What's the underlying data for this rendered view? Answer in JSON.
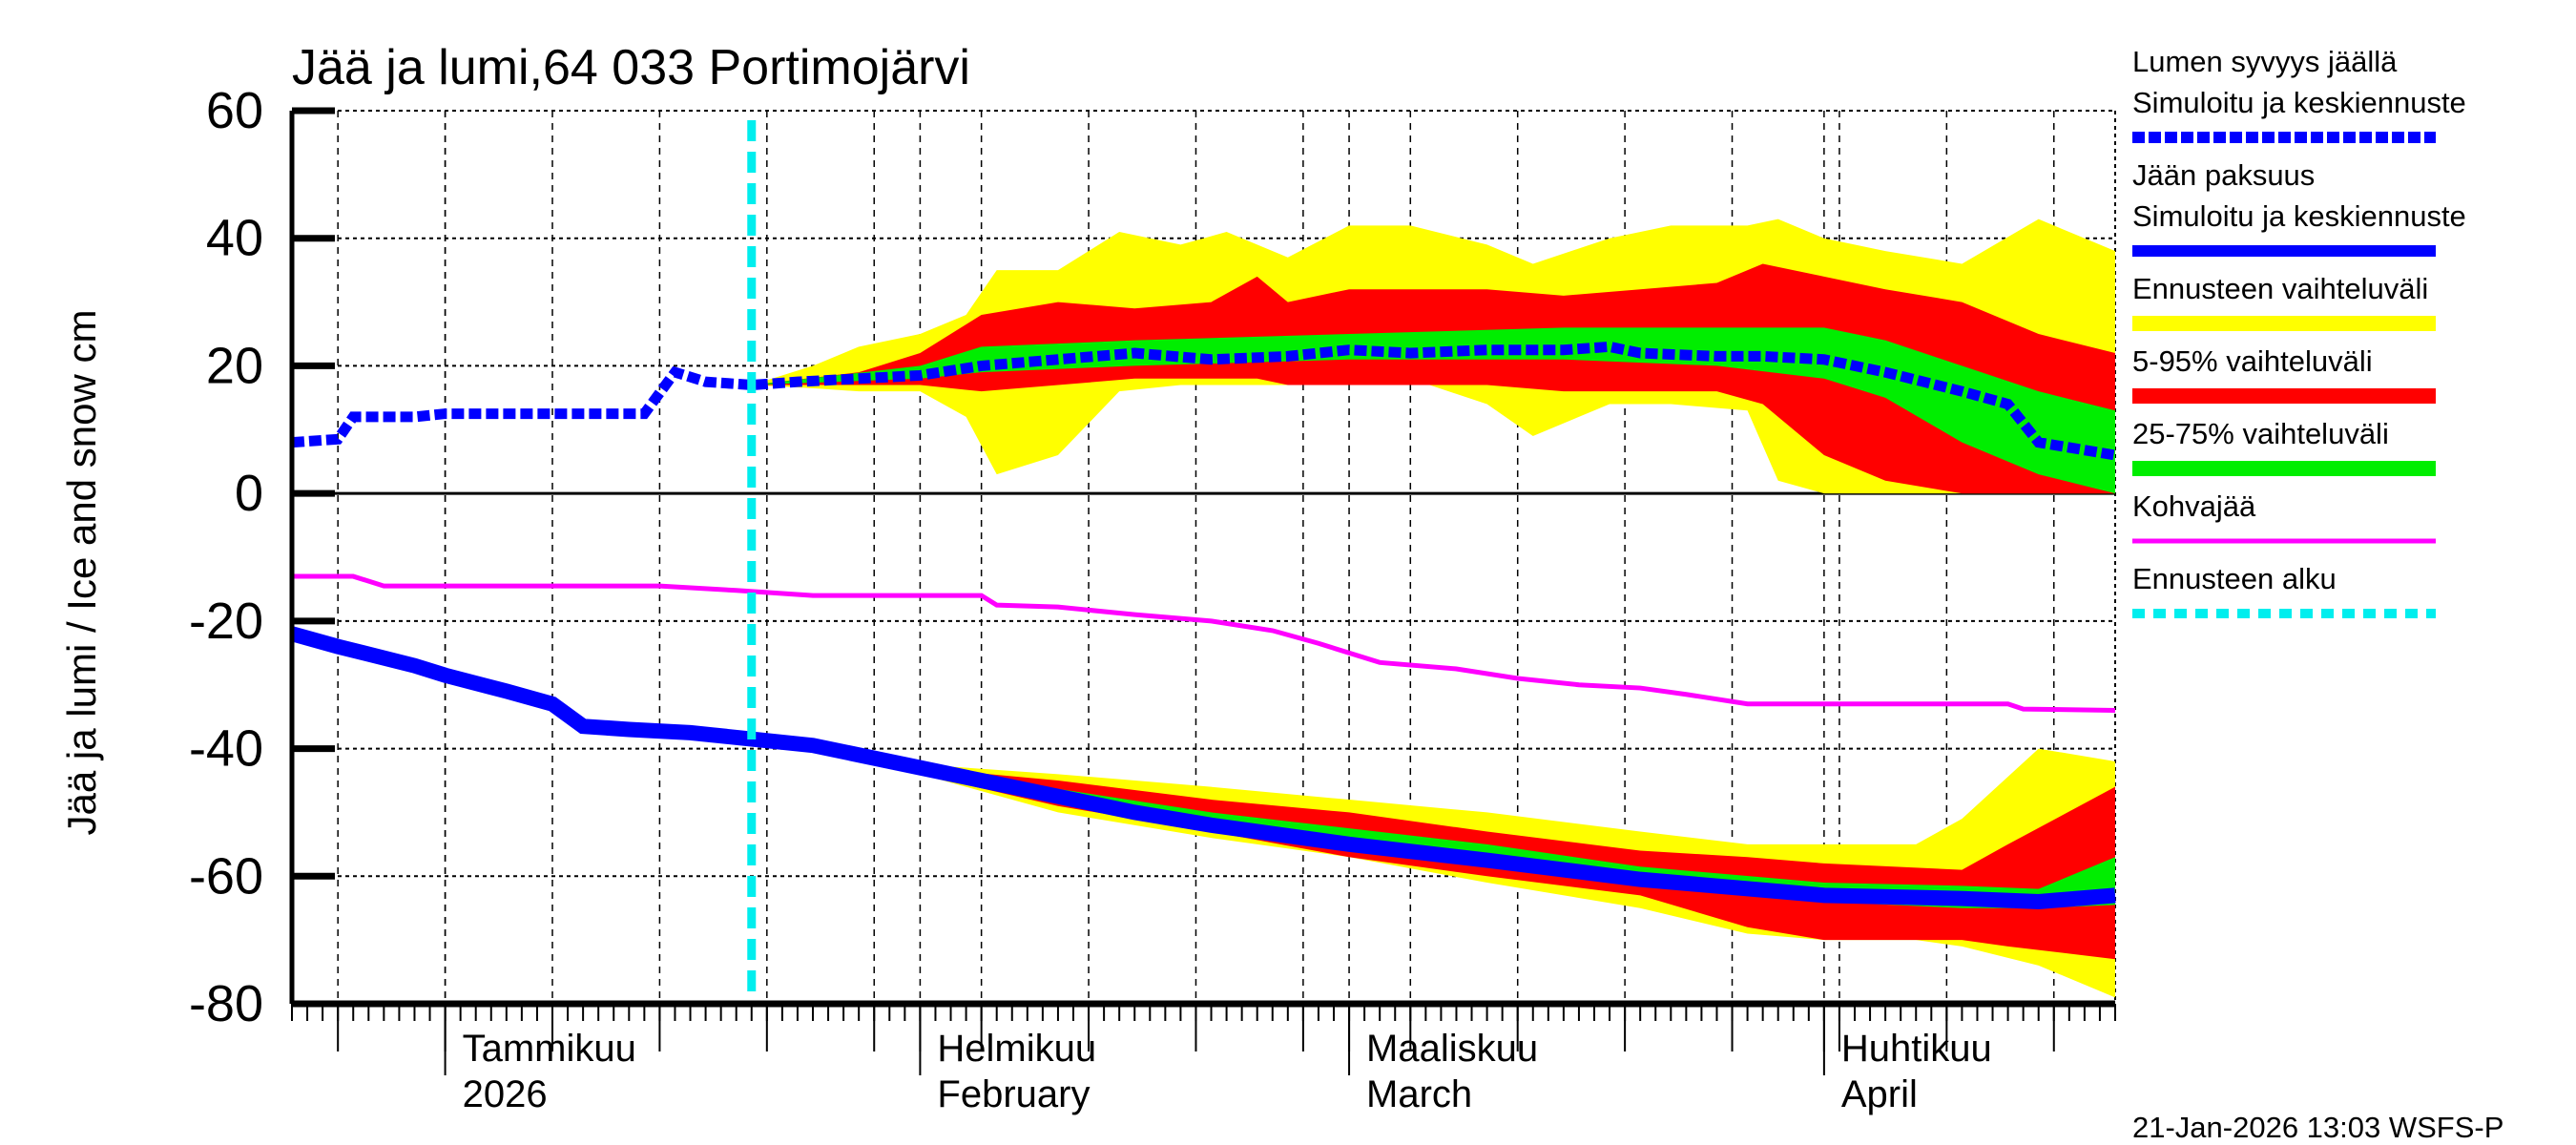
{
  "chart_data": {
    "type": "area",
    "title": "Jää ja lumi,64 033 Portimojärvi",
    "ylabel": "Jää ja lumi / Ice and snow    cm",
    "ylim": [
      -80,
      60
    ],
    "yticks": [
      60,
      40,
      20,
      0,
      -20,
      -40,
      -60,
      -80
    ],
    "xlim": [
      "2025-12-22",
      "2026-04-20"
    ],
    "xticks": [
      {
        "date": "2026-01-01",
        "label1": "Tammikuu",
        "label2": "2026"
      },
      {
        "date": "2026-02-01",
        "label1": "Helmikuu",
        "label2": "February"
      },
      {
        "date": "2026-03-01",
        "label1": "Maaliskuu",
        "label2": "March"
      },
      {
        "date": "2026-04-01",
        "label1": "Huhtikuu",
        "label2": "April"
      }
    ],
    "grid": true,
    "legend_position": "right",
    "forecast_start": "2026-01-21",
    "timestamp": "21-Jan-2026 13:03 WSFS-P",
    "colors": {
      "snow": "#0000ff",
      "ice": "#0000ff",
      "range": "#ffff00",
      "p5_95": "#ff0000",
      "p25_75": "#00ee00",
      "slush": "#ff00ff",
      "forecast_start": "#00eeee"
    },
    "legend": [
      {
        "label1": "Lumen syvyys jäällä",
        "label2": "Simuloitu ja keskiennuste",
        "key": "snow"
      },
      {
        "label1": "Jään paksuus",
        "label2": "Simuloitu ja keskiennuste",
        "key": "ice"
      },
      {
        "label1": "Ennusteen vaihteluväli",
        "key": "range"
      },
      {
        "label1": "5-95% vaihteluväli",
        "key": "p5_95"
      },
      {
        "label1": "25-75% vaihteluväli",
        "key": "p25_75"
      },
      {
        "label1": "Kohvajää",
        "key": "slush"
      },
      {
        "label1": "Ennusteen alku",
        "key": "forecast_start"
      }
    ],
    "series": {
      "snow": [
        [
          "2025-12-22",
          8
        ],
        [
          "2025-12-25",
          8.5
        ],
        [
          "2025-12-26",
          12
        ],
        [
          "2025-12-30",
          12
        ],
        [
          "2026-01-01",
          12.5
        ],
        [
          "2026-01-14",
          12.5
        ],
        [
          "2026-01-16",
          19
        ],
        [
          "2026-01-18",
          17.5
        ],
        [
          "2026-01-21",
          17
        ],
        [
          "2026-01-24",
          17.5
        ],
        [
          "2026-01-28",
          18
        ],
        [
          "2026-02-01",
          18.5
        ],
        [
          "2026-02-05",
          20
        ],
        [
          "2026-02-10",
          21
        ],
        [
          "2026-02-15",
          22
        ],
        [
          "2026-02-20",
          21
        ],
        [
          "2026-02-25",
          21.5
        ],
        [
          "2026-03-01",
          22.5
        ],
        [
          "2026-03-05",
          22
        ],
        [
          "2026-03-10",
          22.5
        ],
        [
          "2026-03-15",
          22.5
        ],
        [
          "2026-03-18",
          23
        ],
        [
          "2026-03-20",
          22
        ],
        [
          "2026-03-25",
          21.5
        ],
        [
          "2026-03-28",
          21.5
        ],
        [
          "2026-04-01",
          21
        ],
        [
          "2026-04-05",
          19
        ],
        [
          "2026-04-10",
          16
        ],
        [
          "2026-04-13",
          14
        ],
        [
          "2026-04-15",
          8
        ],
        [
          "2026-04-20",
          6
        ]
      ],
      "ice": [
        [
          "2025-12-22",
          -22
        ],
        [
          "2025-12-25",
          -24
        ],
        [
          "2025-12-30",
          -27
        ],
        [
          "2026-01-01",
          -28.5
        ],
        [
          "2026-01-05",
          -31
        ],
        [
          "2026-01-08",
          -33
        ],
        [
          "2026-01-10",
          -36.5
        ],
        [
          "2026-01-13",
          -37
        ],
        [
          "2026-01-17",
          -37.5
        ],
        [
          "2026-01-21",
          -38.5
        ],
        [
          "2026-01-25",
          -39.5
        ],
        [
          "2026-02-01",
          -43
        ],
        [
          "2026-02-05",
          -45
        ],
        [
          "2026-02-10",
          -47.5
        ],
        [
          "2026-02-15",
          -50
        ],
        [
          "2026-02-20",
          -52
        ],
        [
          "2026-03-01",
          -55
        ],
        [
          "2026-03-10",
          -57.5
        ],
        [
          "2026-03-20",
          -60.5
        ],
        [
          "2026-04-01",
          -63
        ],
        [
          "2026-04-10",
          -63.5
        ],
        [
          "2026-04-15",
          -64
        ],
        [
          "2026-04-20",
          -63
        ]
      ],
      "slush": [
        [
          "2025-12-22",
          -13
        ],
        [
          "2025-12-26",
          -13
        ],
        [
          "2025-12-28",
          -14.5
        ],
        [
          "2026-01-15",
          -14.5
        ],
        [
          "2026-01-20",
          -15.2
        ],
        [
          "2026-01-25",
          -16
        ],
        [
          "2026-02-05",
          -16
        ],
        [
          "2026-02-06",
          -17.5
        ],
        [
          "2026-02-10",
          -17.8
        ],
        [
          "2026-02-15",
          -19
        ],
        [
          "2026-02-20",
          -20
        ],
        [
          "2026-02-24",
          -21.5
        ],
        [
          "2026-02-27",
          -23.5
        ],
        [
          "2026-03-03",
          -26.5
        ],
        [
          "2026-03-08",
          -27.5
        ],
        [
          "2026-03-12",
          -29
        ],
        [
          "2026-03-16",
          -30
        ],
        [
          "2026-03-20",
          -30.5
        ],
        [
          "2026-03-23",
          -31.5
        ],
        [
          "2026-03-27",
          -33
        ],
        [
          "2026-04-13",
          -33
        ],
        [
          "2026-04-14",
          -33.8
        ],
        [
          "2026-04-20",
          -34
        ]
      ],
      "snow_range": [
        [
          "2026-01-21",
          17,
          17
        ],
        [
          "2026-01-25",
          16.5,
          20
        ],
        [
          "2026-01-28",
          16,
          23
        ],
        [
          "2026-02-01",
          16,
          25
        ],
        [
          "2026-02-04",
          12,
          28
        ],
        [
          "2026-02-06",
          3,
          35
        ],
        [
          "2026-02-10",
          6,
          35
        ],
        [
          "2026-02-14",
          16,
          41
        ],
        [
          "2026-02-18",
          17,
          39
        ],
        [
          "2026-02-21",
          17,
          41
        ],
        [
          "2026-02-25",
          17,
          37
        ],
        [
          "2026-03-01",
          17,
          42
        ],
        [
          "2026-03-05",
          18,
          42
        ],
        [
          "2026-03-10",
          14,
          39
        ],
        [
          "2026-03-13",
          9,
          36
        ],
        [
          "2026-03-18",
          14,
          40
        ],
        [
          "2026-03-22",
          14,
          42
        ],
        [
          "2026-03-27",
          13,
          42
        ],
        [
          "2026-03-29",
          2,
          43
        ],
        [
          "2026-04-01",
          0,
          40
        ],
        [
          "2026-04-05",
          0,
          38
        ],
        [
          "2026-04-10",
          0,
          36
        ],
        [
          "2026-04-15",
          0,
          43
        ],
        [
          "2026-04-20",
          0,
          38
        ]
      ],
      "snow_p5_95": [
        [
          "2026-01-21",
          17,
          17
        ],
        [
          "2026-01-28",
          17,
          19
        ],
        [
          "2026-02-01",
          17,
          22
        ],
        [
          "2026-02-05",
          16,
          28
        ],
        [
          "2026-02-10",
          17,
          30
        ],
        [
          "2026-02-15",
          18,
          29
        ],
        [
          "2026-02-20",
          18,
          30
        ],
        [
          "2026-02-23",
          18,
          34
        ],
        [
          "2026-02-25",
          17,
          30
        ],
        [
          "2026-03-01",
          17,
          32
        ],
        [
          "2026-03-10",
          17,
          32
        ],
        [
          "2026-03-15",
          16,
          31
        ],
        [
          "2026-03-20",
          16,
          32
        ],
        [
          "2026-03-25",
          16,
          33
        ],
        [
          "2026-03-28",
          14,
          36
        ],
        [
          "2026-04-01",
          6,
          34
        ],
        [
          "2026-04-05",
          2,
          32
        ],
        [
          "2026-04-10",
          0,
          30
        ],
        [
          "2026-04-15",
          0,
          25
        ],
        [
          "2026-04-20",
          0,
          22
        ]
      ],
      "snow_p25_75": [
        [
          "2026-01-21",
          17,
          17
        ],
        [
          "2026-02-01",
          18,
          20
        ],
        [
          "2026-02-05",
          19,
          23
        ],
        [
          "2026-02-15",
          20,
          24
        ],
        [
          "2026-03-01",
          21,
          25
        ],
        [
          "2026-03-15",
          21,
          26
        ],
        [
          "2026-03-25",
          20,
          26
        ],
        [
          "2026-04-01",
          18,
          26
        ],
        [
          "2026-04-05",
          15,
          24
        ],
        [
          "2026-04-10",
          8,
          20
        ],
        [
          "2026-04-15",
          3,
          16
        ],
        [
          "2026-04-20",
          0,
          13
        ]
      ],
      "ice_range": [
        [
          "2026-01-21",
          -38.5,
          -38.5
        ],
        [
          "2026-02-01",
          -44,
          -42.5
        ],
        [
          "2026-02-10",
          -50,
          -44
        ],
        [
          "2026-02-20",
          -54,
          -46
        ],
        [
          "2026-03-01",
          -57,
          -48
        ],
        [
          "2026-03-10",
          -61,
          -50
        ],
        [
          "2026-03-20",
          -65,
          -53
        ],
        [
          "2026-03-27",
          -69,
          -55
        ],
        [
          "2026-04-01",
          -70,
          -55
        ],
        [
          "2026-04-07",
          -70,
          -55
        ],
        [
          "2026-04-10",
          -71,
          -51
        ],
        [
          "2026-04-15",
          -74,
          -40
        ],
        [
          "2026-04-20",
          -79,
          -42
        ]
      ],
      "ice_p5_95": [
        [
          "2026-01-21",
          -38.5,
          -38.5
        ],
        [
          "2026-02-01",
          -44,
          -43
        ],
        [
          "2026-02-10",
          -49,
          -45
        ],
        [
          "2026-02-20",
          -53,
          -48
        ],
        [
          "2026-03-01",
          -57,
          -50
        ],
        [
          "2026-03-10",
          -60,
          -53
        ],
        [
          "2026-03-20",
          -63,
          -56
        ],
        [
          "2026-03-27",
          -68,
          -57
        ],
        [
          "2026-04-01",
          -70,
          -58
        ],
        [
          "2026-04-10",
          -70,
          -59
        ],
        [
          "2026-04-13",
          -71,
          -55
        ],
        [
          "2026-04-20",
          -73,
          -46
        ]
      ],
      "ice_p25_75": [
        [
          "2026-01-21",
          -38.5,
          -38.5
        ],
        [
          "2026-02-01",
          -43.8,
          -43
        ],
        [
          "2026-02-20",
          -52.5,
          -50
        ],
        [
          "2026-03-10",
          -58,
          -55
        ],
        [
          "2026-03-20",
          -61,
          -58.5
        ],
        [
          "2026-04-01",
          -64,
          -61
        ],
        [
          "2026-04-10",
          -65,
          -61.5
        ],
        [
          "2026-04-15",
          -65,
          -62
        ],
        [
          "2026-04-20",
          -64.5,
          -57
        ]
      ]
    }
  }
}
